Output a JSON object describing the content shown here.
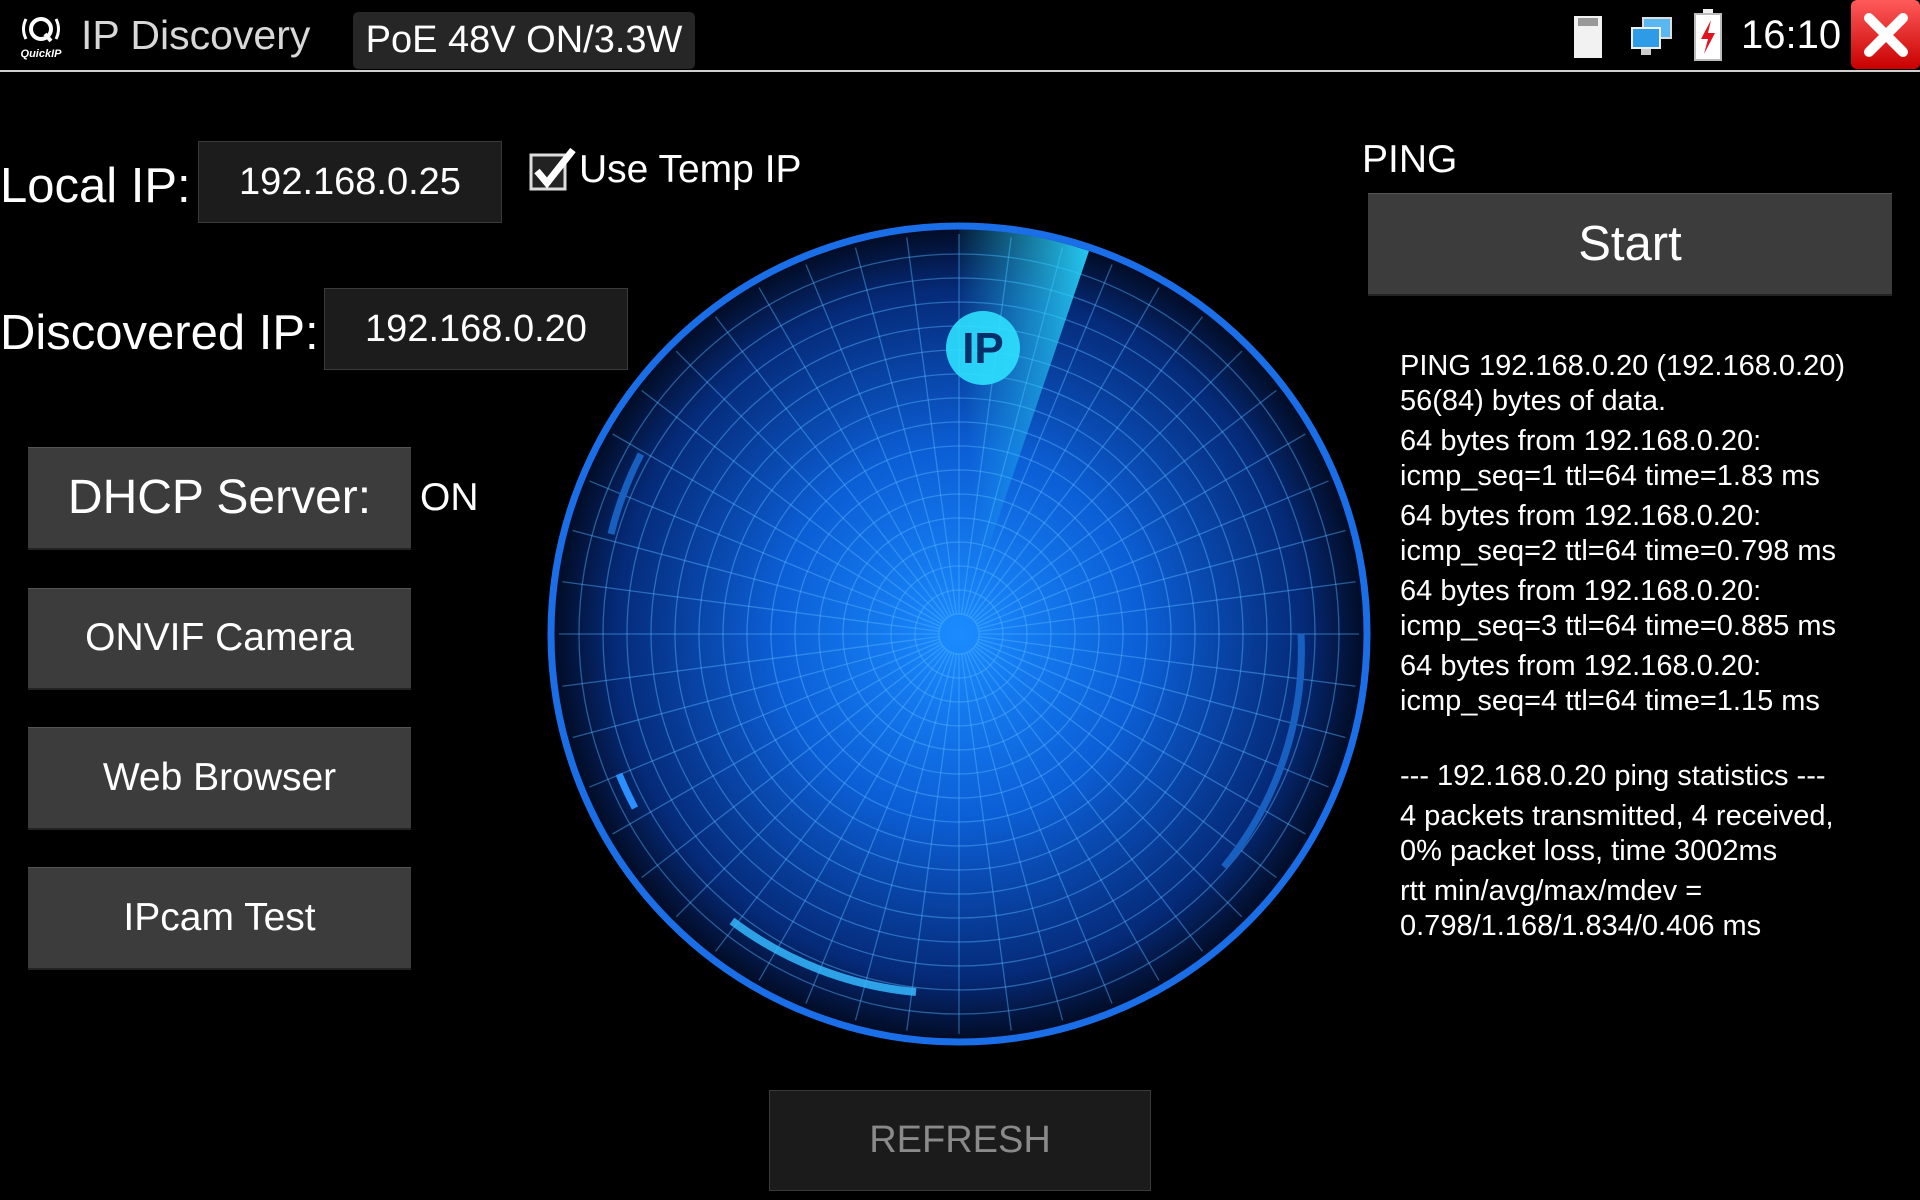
{
  "header": {
    "logo_text": "QuickIP",
    "title": "IP Discovery",
    "poe_status": "PoE 48V ON/3.3W",
    "status_icons": [
      "sd-card-icon",
      "network-icon",
      "battery-charging-icon"
    ],
    "time": "16:10",
    "close_icon": "close-icon",
    "accent_close": "#e02020"
  },
  "left": {
    "local_ip_label": "Local IP:",
    "local_ip_value": "192.168.0.25",
    "use_temp_ip_label": "Use Temp IP",
    "use_temp_ip_checked": true,
    "discovered_ip_label": "Discovered IP:",
    "discovered_ip_value": "192.168.0.20",
    "dhcp_button": "DHCP Server:",
    "dhcp_status": "ON",
    "onvif_button": "ONVIF Camera",
    "web_button": "Web Browser",
    "ipcam_button": "IPcam Test"
  },
  "radar": {
    "badge": "IP",
    "color": "#1e7fff"
  },
  "ping": {
    "label": "PING",
    "start_button": "Start",
    "output": [
      "PING 192.168.0.20 (192.168.0.20)\n56(84) bytes of data.",
      "64 bytes from 192.168.0.20:\nicmp_seq=1 ttl=64 time=1.83 ms",
      "64 bytes from 192.168.0.20:\nicmp_seq=2 ttl=64 time=0.798 ms",
      "64 bytes from 192.168.0.20:\nicmp_seq=3 ttl=64 time=0.885 ms",
      "64 bytes from 192.168.0.20:\nicmp_seq=4 ttl=64 time=1.15 ms",
      "\n--- 192.168.0.20 ping statistics ---",
      "4 packets transmitted, 4 received,\n0% packet loss, time 3002ms",
      "rtt min/avg/max/mdev =\n0.798/1.168/1.834/0.406 ms"
    ]
  },
  "footer": {
    "refresh_button": "REFRESH"
  }
}
